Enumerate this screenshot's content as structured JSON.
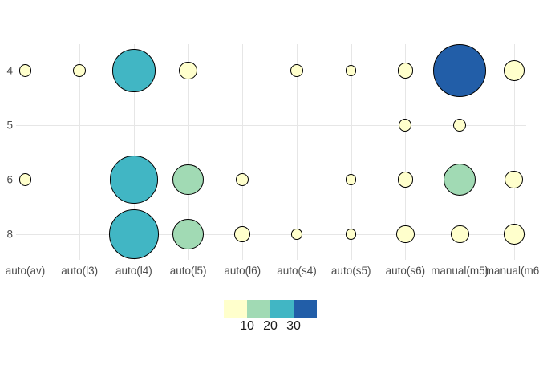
{
  "chart_data": {
    "type": "scatter",
    "subtype": "bubble-count-plot",
    "title": "",
    "xlabel": "",
    "ylabel": "",
    "grid": "on",
    "x_categories": [
      "auto(av)",
      "auto(l3)",
      "auto(l4)",
      "auto(l5)",
      "auto(l6)",
      "auto(s4)",
      "auto(s5)",
      "auto(s6)",
      "manual(m5)",
      "manual(m6)"
    ],
    "y_categories": [
      "4",
      "5",
      "6",
      "8"
    ],
    "points": [
      {
        "x": "auto(av)",
        "y": "4",
        "n": 2
      },
      {
        "x": "auto(l3)",
        "y": "4",
        "n": 2
      },
      {
        "x": "auto(l4)",
        "y": "4",
        "n": 21
      },
      {
        "x": "auto(l5)",
        "y": "4",
        "n": 4
      },
      {
        "x": "auto(s4)",
        "y": "4",
        "n": 2
      },
      {
        "x": "auto(s5)",
        "y": "4",
        "n": 1
      },
      {
        "x": "auto(s6)",
        "y": "4",
        "n": 3
      },
      {
        "x": "manual(m5)",
        "y": "4",
        "n": 32
      },
      {
        "x": "manual(m6)",
        "y": "4",
        "n": 5
      },
      {
        "x": "auto(s6)",
        "y": "5",
        "n": 2
      },
      {
        "x": "manual(m5)",
        "y": "5",
        "n": 2
      },
      {
        "x": "auto(av)",
        "y": "6",
        "n": 2
      },
      {
        "x": "auto(l4)",
        "y": "6",
        "n": 26
      },
      {
        "x": "auto(l5)",
        "y": "6",
        "n": 11
      },
      {
        "x": "auto(l6)",
        "y": "6",
        "n": 2
      },
      {
        "x": "auto(s5)",
        "y": "6",
        "n": 1
      },
      {
        "x": "auto(s6)",
        "y": "6",
        "n": 3
      },
      {
        "x": "manual(m5)",
        "y": "6",
        "n": 12
      },
      {
        "x": "manual(m6)",
        "y": "6",
        "n": 4
      },
      {
        "x": "auto(l4)",
        "y": "8",
        "n": 28
      },
      {
        "x": "auto(l5)",
        "y": "8",
        "n": 11
      },
      {
        "x": "auto(l6)",
        "y": "8",
        "n": 3
      },
      {
        "x": "auto(s4)",
        "y": "8",
        "n": 1
      },
      {
        "x": "auto(s5)",
        "y": "8",
        "n": 1
      },
      {
        "x": "auto(s6)",
        "y": "8",
        "n": 4
      },
      {
        "x": "manual(m5)",
        "y": "8",
        "n": 4
      },
      {
        "x": "manual(m6)",
        "y": "8",
        "n": 5
      }
    ],
    "legend": {
      "position": "bottom-center",
      "tick_labels": [
        "10",
        "20",
        "30"
      ],
      "bin_thresholds": [
        10,
        20,
        30
      ],
      "bin_colors": [
        "#FFFFCC",
        "#A1DAB4",
        "#41B6C4",
        "#225EA8"
      ]
    },
    "style": {
      "background_color": "#FFFFFF",
      "gridline_color": "#E6E6E6",
      "axis_text_color": "#4D4D4D",
      "legend_text_color": "#1A1A1A",
      "bubble_stroke_color": "#000000"
    }
  }
}
